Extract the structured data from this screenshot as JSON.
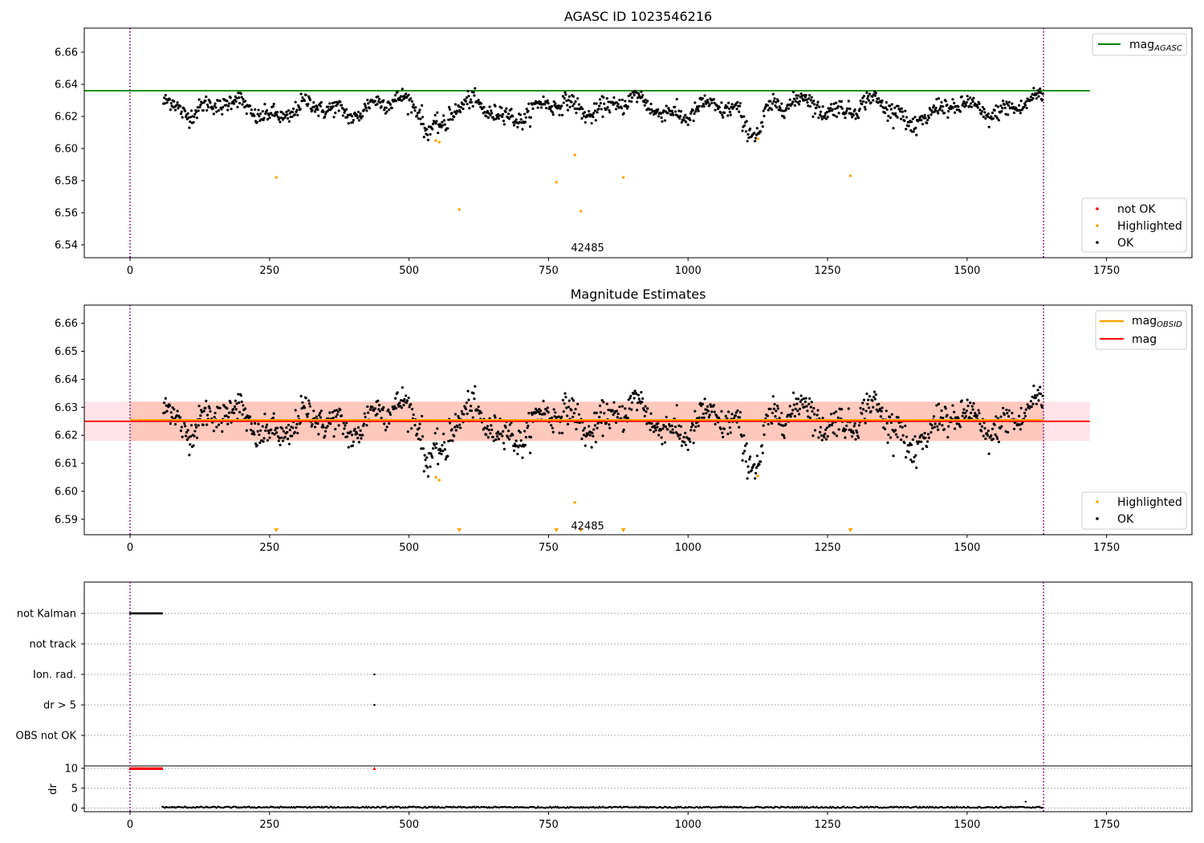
{
  "figure": {
    "panels": [
      {
        "id": "agasc",
        "title": "AGASC ID 1023546216"
      },
      {
        "id": "estimates",
        "title": "Magnitude Estimates"
      },
      {
        "id": "flags",
        "title": ""
      }
    ]
  },
  "chart_data": [
    {
      "type": "scatter",
      "title": "AGASC ID 1023546216",
      "xlim": [
        -82,
        1903
      ],
      "ylim": [
        6.532,
        6.675
      ],
      "x_ticks": [
        0,
        250,
        500,
        750,
        1000,
        1250,
        1500,
        1750
      ],
      "y_ticks": [
        6.54,
        6.56,
        6.58,
        6.6,
        6.62,
        6.64,
        6.66
      ],
      "y_tick_labels": [
        "6.54",
        "6.56",
        "6.58",
        "6.60",
        "6.62",
        "6.64",
        "6.66"
      ],
      "annotation": {
        "text": "42485",
        "x": 820,
        "y": 6.54
      },
      "vertical_lines": {
        "x": [
          0,
          1637
        ],
        "color": "#800080",
        "style": "dotted"
      },
      "reference_line": {
        "name": "mag_AGASC",
        "legend_main": "mag",
        "legend_sub": "AGASC",
        "y": 6.636,
        "x_range": [
          -82,
          1720
        ],
        "color": "#008000"
      },
      "ok_series": {
        "name": "OK",
        "color": "#000000",
        "x_start": 60,
        "x_end": 1637,
        "count": 1260,
        "mean": 6.625,
        "noise": 0.0045
      },
      "highlighted": {
        "name": "Highlighted",
        "color": "#FFA500",
        "points": [
          [
            262,
            6.582
          ],
          [
            548,
            6.605
          ],
          [
            554,
            6.604
          ],
          [
            590,
            6.562
          ],
          [
            764,
            6.579
          ],
          [
            797,
            6.596
          ],
          [
            808,
            6.561
          ],
          [
            884,
            6.582
          ],
          [
            1125,
            6.606
          ],
          [
            1291,
            6.583
          ]
        ]
      },
      "not_ok": {
        "name": "not OK",
        "color": "#FF0000",
        "points": []
      },
      "legend_top": [
        "mag_AGASC"
      ],
      "legend_bottom": [
        "not OK",
        "Highlighted",
        "OK"
      ]
    },
    {
      "type": "scatter",
      "title": "Magnitude Estimates",
      "xlim": [
        -82,
        1903
      ],
      "ylim": [
        6.5845,
        6.6665
      ],
      "x_ticks": [
        0,
        250,
        500,
        750,
        1000,
        1250,
        1500,
        1750
      ],
      "y_ticks": [
        6.59,
        6.6,
        6.61,
        6.62,
        6.63,
        6.64,
        6.65,
        6.66
      ],
      "y_tick_labels": [
        "6.59",
        "6.60",
        "6.61",
        "6.62",
        "6.63",
        "6.64",
        "6.65",
        "6.66"
      ],
      "annotation": {
        "text": "42485",
        "x": 820,
        "y": 6.5875
      },
      "vertical_lines": {
        "x": [
          0,
          1637
        ],
        "color": "#800080",
        "style": "dotted"
      },
      "mag_obsid": {
        "name": "mag_OBSID",
        "legend_main": "mag",
        "legend_sub": "OBSID",
        "y": 6.6255,
        "x_range": [
          0,
          1637
        ],
        "color": "#FFA500",
        "band": [
          6.618,
          6.632
        ],
        "band_color": "#FFA07A"
      },
      "mag": {
        "name": "mag",
        "y": 6.625,
        "x_range": [
          -82,
          1720
        ],
        "color": "#FF0000",
        "band": [
          6.618,
          6.632
        ],
        "band_color": "#FFC0CB"
      },
      "highlighted": {
        "name": "Highlighted",
        "color": "#FFA500",
        "points": [
          [
            548,
            6.605
          ],
          [
            554,
            6.604
          ],
          [
            797,
            6.596
          ],
          [
            1125,
            6.6055
          ]
        ]
      },
      "off_scale_markers": {
        "color": "#FFA500",
        "x": [
          262,
          590,
          764,
          808,
          884,
          1291
        ]
      },
      "legend_top": [
        "mag_OBSID",
        "mag"
      ],
      "legend_bottom": [
        "Highlighted",
        "OK"
      ]
    },
    {
      "type": "scatter",
      "title": "",
      "xlim": [
        -82,
        1903
      ],
      "y_categories": [
        "not Kalman",
        "not track",
        "Ion. rad.",
        "dr > 5",
        "OBS not OK"
      ],
      "flag_points": {
        "not Kalman": {
          "x_range": [
            0,
            58
          ]
        },
        "not track": {
          "x_range": []
        },
        "Ion. rad.": {
          "x": [
            438
          ]
        },
        "dr > 5": {
          "x": [
            438
          ]
        },
        "OBS not OK": {
          "x_range": []
        }
      },
      "dr_subplot": {
        "ylabel": "dr",
        "y_ticks": [
          0,
          5,
          10
        ],
        "y_tick_labels": [
          "0",
          "5",
          "10"
        ],
        "ylim": [
          -0.9,
          10.6
        ],
        "clipped_markers": {
          "color": "#FF0000",
          "y": 10,
          "x_range": [
            0,
            58
          ],
          "extra_x": [
            438
          ]
        },
        "series": {
          "color": "#000000",
          "x_start": 58,
          "x_end": 1637,
          "typical": 0.2,
          "outlier": [
            1605,
            1.6
          ]
        }
      },
      "x_ticks": [
        0,
        250,
        500,
        750,
        1000,
        1250,
        1500,
        1750
      ],
      "vertical_lines": {
        "x": [
          0,
          1637
        ],
        "color": "#800080",
        "style": "dotted"
      }
    }
  ]
}
